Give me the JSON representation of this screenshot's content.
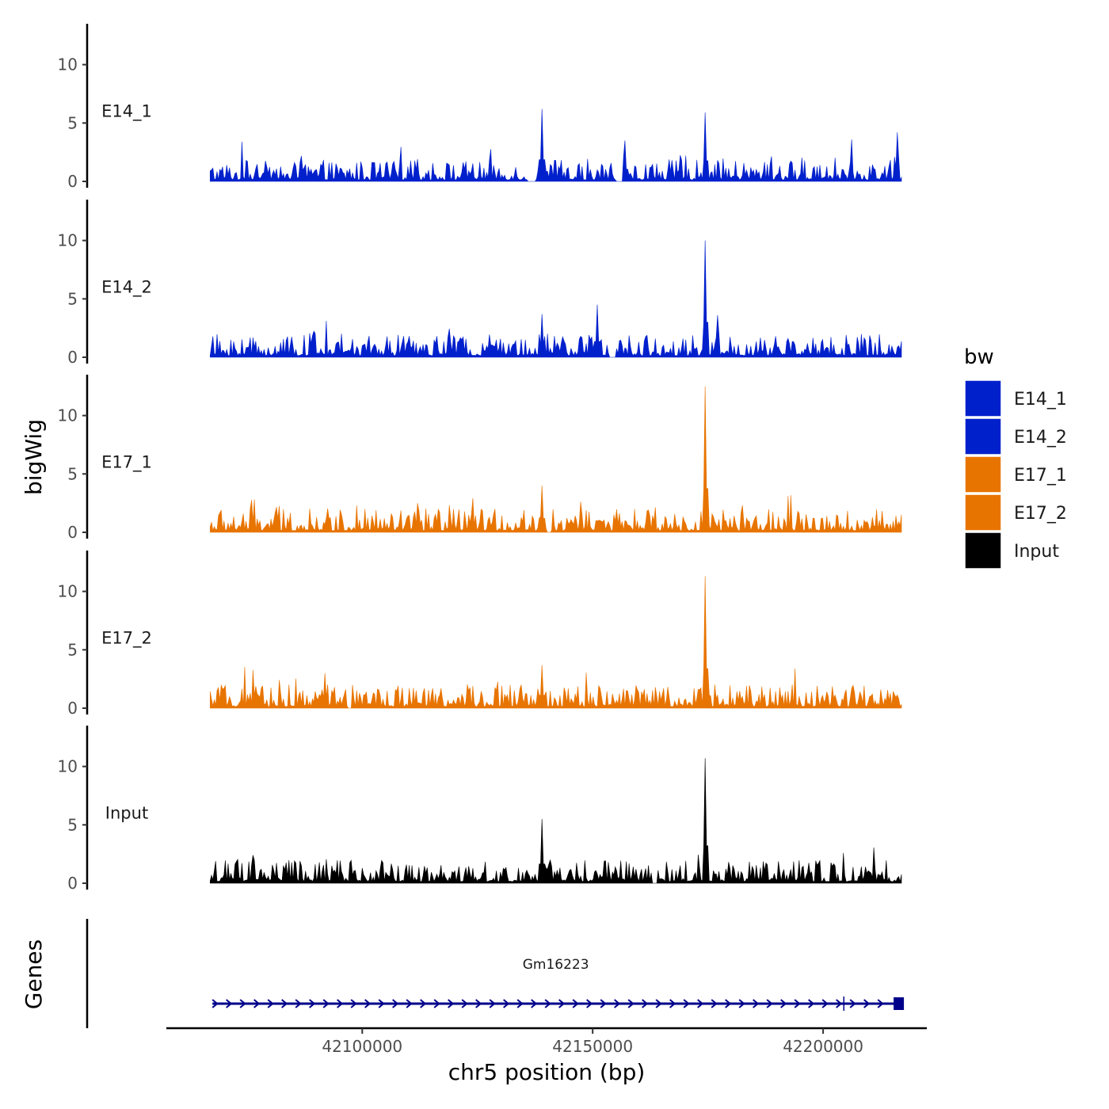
{
  "chart_data": {
    "type": "area",
    "title": "",
    "ylabel": "bigWig",
    "xlabel": "chr5 position (bp)",
    "genes_label": "Genes",
    "xlim": [
      42057500,
      42222500
    ],
    "data_range": [
      42067000,
      42217000
    ],
    "x_ticks": [
      42100000,
      42150000,
      42200000
    ],
    "x_tick_labels": [
      "42100000",
      "42150000",
      "42200000"
    ],
    "ylim": [
      0,
      13.5
    ],
    "y_ticks": [
      0,
      5,
      10
    ],
    "y_tick_labels": [
      "0",
      "5",
      "10"
    ],
    "legend_title": "bw",
    "legend_position": "right",
    "series": [
      {
        "name": "E14_1",
        "color": "#0020CC",
        "base_level": 0.9,
        "peaks": [
          {
            "x": 42139000,
            "y": 6.2
          },
          {
            "x": 42157000,
            "y": 3.5
          },
          {
            "x": 42174500,
            "y": 5.9
          },
          {
            "x": 42216000,
            "y": 4.2
          }
        ],
        "gaps": [
          {
            "from": 42136000,
            "to": 42137500
          },
          {
            "from": 42155000,
            "to": 42156500
          }
        ]
      },
      {
        "name": "E14_2",
        "color": "#0020CC",
        "base_level": 1.0,
        "peaks": [
          {
            "x": 42139000,
            "y": 3.7
          },
          {
            "x": 42151000,
            "y": 4.5
          },
          {
            "x": 42174500,
            "y": 10.0
          },
          {
            "x": 42177000,
            "y": 3.6
          }
        ],
        "gaps": [
          {
            "from": 42153500,
            "to": 42155000
          }
        ]
      },
      {
        "name": "E17_1",
        "color": "#E87400",
        "base_level": 1.0,
        "peaks": [
          {
            "x": 42139000,
            "y": 4.0
          },
          {
            "x": 42174500,
            "y": 12.5
          },
          {
            "x": 42112000,
            "y": 2.5
          }
        ],
        "gaps": [
          {
            "from": 42140000,
            "to": 42141000
          }
        ]
      },
      {
        "name": "E17_2",
        "color": "#E87400",
        "base_level": 1.0,
        "peaks": [
          {
            "x": 42139000,
            "y": 3.7
          },
          {
            "x": 42174500,
            "y": 11.3
          },
          {
            "x": 42092000,
            "y": 3.0
          }
        ],
        "gaps": [
          {
            "from": 42097000,
            "to": 42097800
          }
        ]
      },
      {
        "name": "Input",
        "color": "#000000",
        "base_level": 1.0,
        "peaks": [
          {
            "x": 42139000,
            "y": 5.5
          },
          {
            "x": 42174500,
            "y": 10.7
          }
        ],
        "gaps": [
          {
            "from": 42163000,
            "to": 42164000
          }
        ]
      }
    ],
    "genes": [
      {
        "name": "Gm16223",
        "start": 42067500,
        "end": 42216500,
        "strand": "+",
        "color": "#00008B"
      }
    ]
  }
}
